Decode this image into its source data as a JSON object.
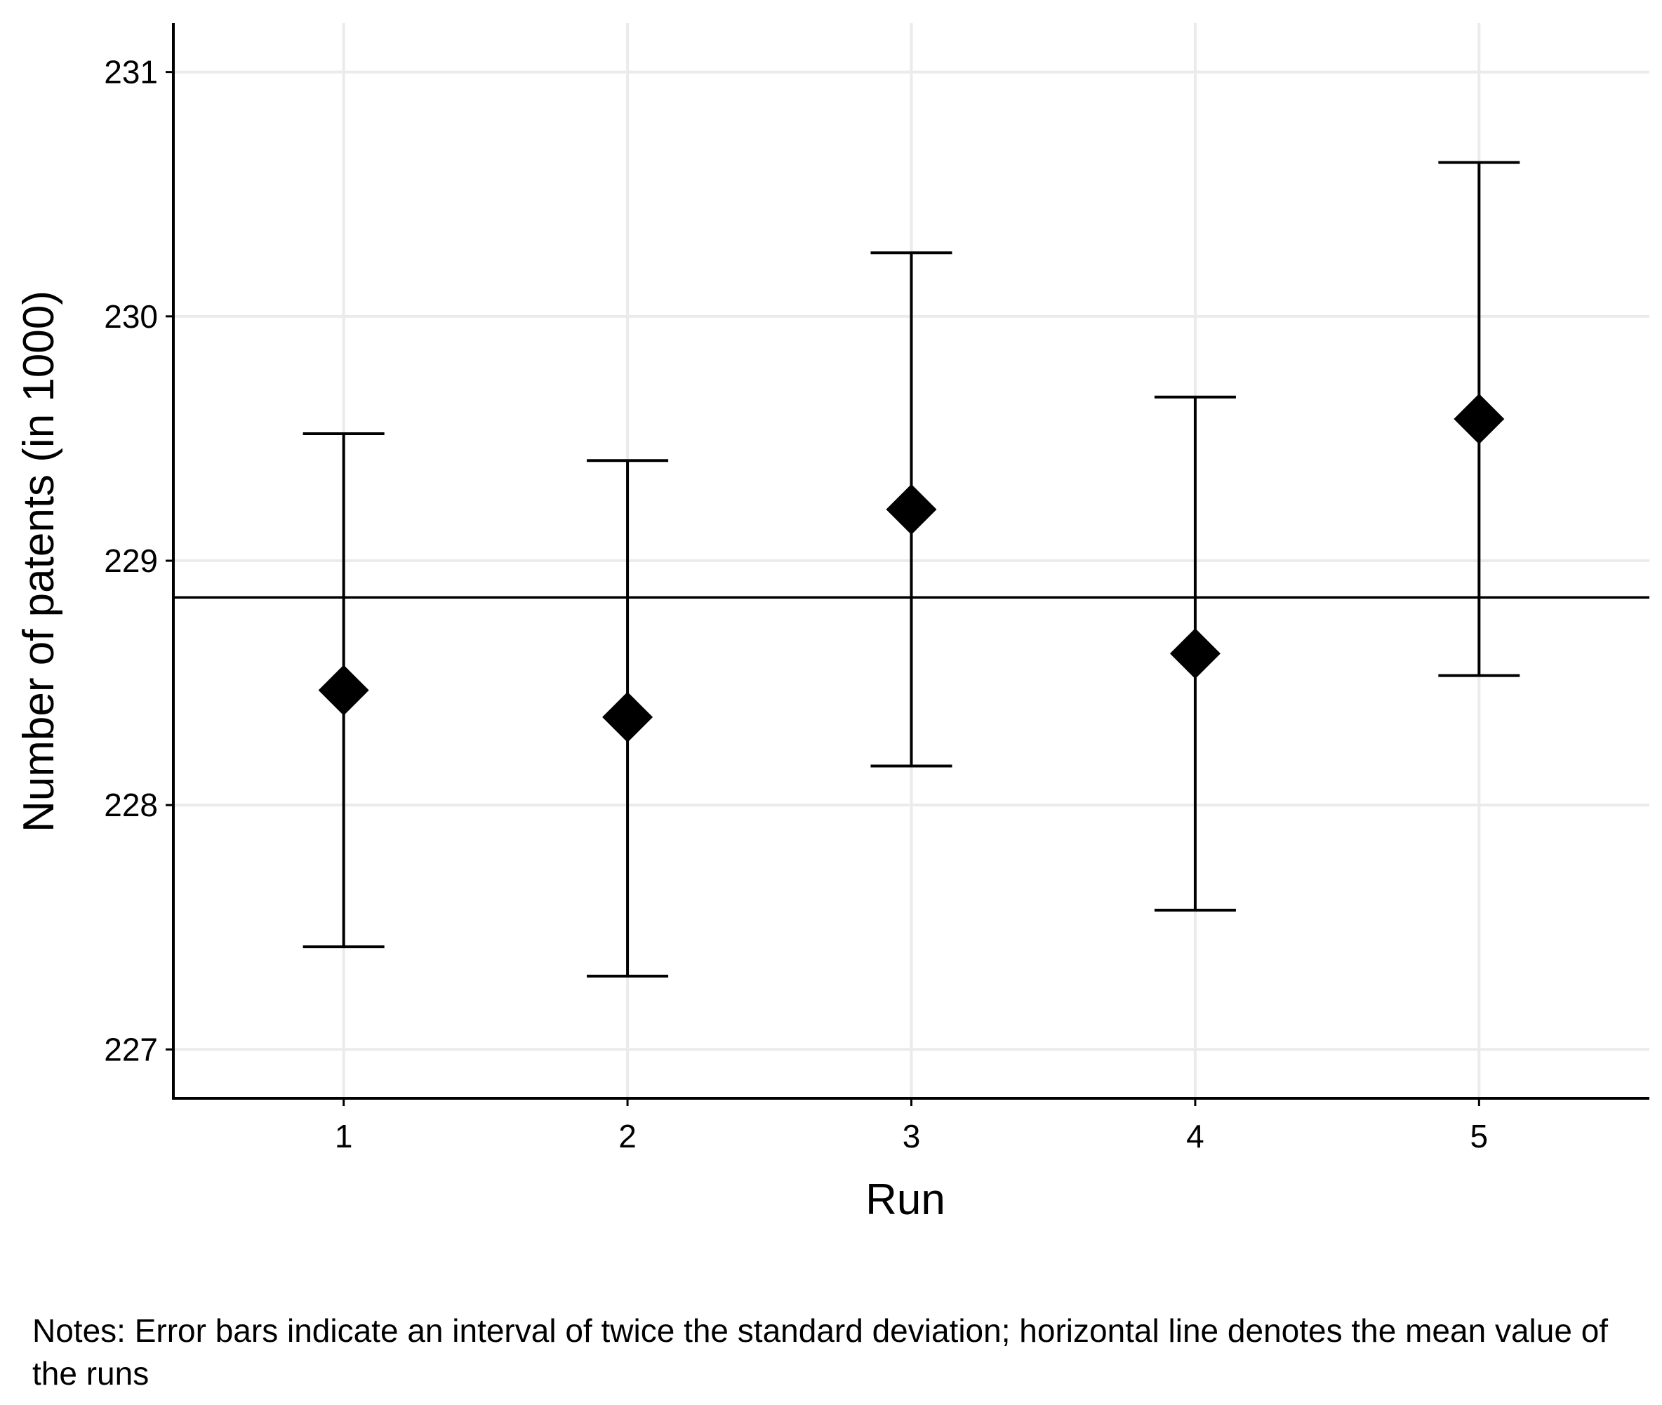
{
  "chart_data": {
    "type": "scatter",
    "x": [
      1,
      2,
      3,
      4,
      5
    ],
    "series": [
      {
        "values": [
          228.47,
          228.36,
          229.21,
          228.62,
          229.58
        ],
        "lower": [
          227.42,
          227.3,
          228.16,
          227.57,
          228.53
        ],
        "upper": [
          229.52,
          229.41,
          230.26,
          229.67,
          230.63
        ],
        "marker": "diamond"
      }
    ],
    "reference_line": {
      "y": 228.85,
      "orientation": "horizontal"
    },
    "xlabel": "Run",
    "ylabel": "Number of patents (in 1000)",
    "x_ticks": [
      "1",
      "2",
      "3",
      "4",
      "5"
    ],
    "y_ticks": [
      "227",
      "228",
      "229",
      "230",
      "231"
    ],
    "y_tick_values": [
      227,
      228,
      229,
      230,
      231
    ],
    "xlim": [
      0.4,
      5.6
    ],
    "ylim": [
      226.8,
      231.2
    ],
    "grid": true,
    "legend": "none",
    "colors": {
      "marks": "#000000",
      "grid": "#ebebeb",
      "background": "#ffffff"
    }
  },
  "notes": "Notes: Error bars indicate an interval of twice the standard deviation; horizontal line denotes the mean value of the runs"
}
